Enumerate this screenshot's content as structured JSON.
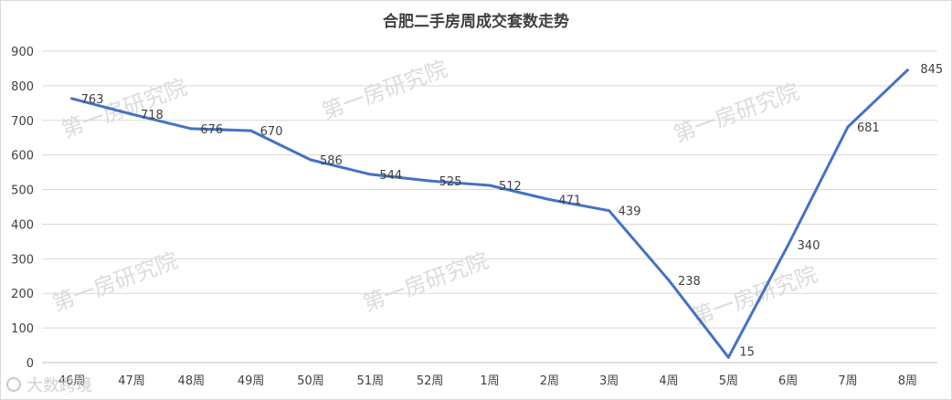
{
  "chart_data": {
    "type": "line",
    "title": "合肥二手房周成交套数走势",
    "xlabel": "",
    "ylabel": "",
    "categories": [
      "46周",
      "47周",
      "48周",
      "49周",
      "50周",
      "51周",
      "52周",
      "1周",
      "2周",
      "3周",
      "4周",
      "5周",
      "6周",
      "7周",
      "8周"
    ],
    "series": [
      {
        "values": [
          763,
          718,
          676,
          670,
          586,
          544,
          525,
          512,
          471,
          439,
          238,
          15,
          340,
          681,
          845
        ]
      }
    ],
    "ylim": [
      0,
      900
    ],
    "yticks": [
      0,
      100,
      200,
      300,
      400,
      500,
      600,
      700,
      800,
      900
    ],
    "grid": true,
    "legend": "none",
    "data_labels": true,
    "line_color": "#4472c4"
  },
  "watermarks": {
    "text": "第一房研究院",
    "corner_text": "大数跨境"
  },
  "colors": {
    "line": "#4472c4",
    "grid": "#d9d9d9",
    "text": "#404040"
  }
}
